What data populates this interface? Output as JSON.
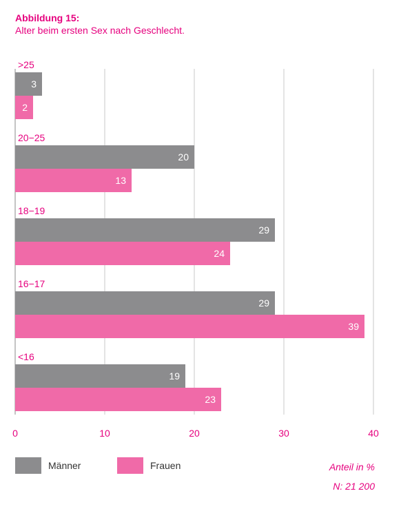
{
  "title": "Abbildung 15:",
  "subtitle": "Alter beim ersten Sex nach Geschlecht.",
  "legend": {
    "maenner": "Männer",
    "frauen": "Frauen"
  },
  "note_unit": "Anteil in %",
  "note_n": "N: 21 200",
  "colors": {
    "maenner": "#8c8c8e",
    "frauen": "#f06aa8",
    "accent": "#e6007e",
    "grid": "#c8c8c8"
  },
  "chart_data": {
    "type": "bar",
    "orientation": "horizontal",
    "categories": [
      ">25",
      "20−25",
      "18−19",
      "16−17",
      "<16"
    ],
    "series": [
      {
        "name": "Männer",
        "values": [
          3,
          20,
          29,
          29,
          19
        ]
      },
      {
        "name": "Frauen",
        "values": [
          2,
          13,
          24,
          39,
          23
        ]
      }
    ],
    "xlim": [
      0,
      40
    ],
    "xticks": [
      0,
      10,
      20,
      30,
      40
    ],
    "grid": true,
    "legend_position": "bottom-left"
  }
}
